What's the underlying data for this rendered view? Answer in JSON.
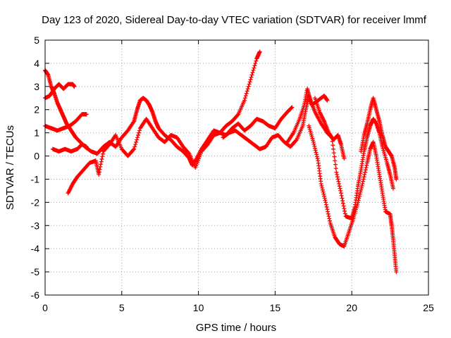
{
  "chart_data": {
    "type": "scatter",
    "title": "Day 123 of 2020, Sidereal Day-to-day VTEC variation (SDTVAR) for receiver lmmf",
    "xlabel": "GPS time / hours",
    "ylabel": "SDTVAR / TECUs",
    "xlim": [
      0,
      25
    ],
    "ylim": [
      -6,
      5
    ],
    "x_ticks": [
      "0",
      "5",
      "10",
      "15",
      "20",
      "25"
    ],
    "y_ticks": [
      "-6",
      "-5",
      "-4",
      "-3",
      "-2",
      "-1",
      "0",
      "1",
      "2",
      "3",
      "4",
      "5"
    ],
    "grid": true,
    "marker": "+",
    "color": "#ff0000",
    "series": [
      {
        "values": [
          [
            0.0,
            3.7
          ],
          [
            0.2,
            3.5
          ],
          [
            0.4,
            3.0
          ],
          [
            0.6,
            2.7
          ],
          [
            0.8,
            2.3
          ],
          [
            1.0,
            2.0
          ],
          [
            1.2,
            1.7
          ],
          [
            1.4,
            1.4
          ],
          [
            1.6,
            1.2
          ],
          [
            1.8,
            1.0
          ],
          [
            2.0,
            0.8
          ],
          [
            2.3,
            0.6
          ],
          [
            2.6,
            0.4
          ],
          [
            3.0,
            0.2
          ],
          [
            3.4,
            0.1
          ],
          [
            3.8,
            0.4
          ],
          [
            4.2,
            0.6
          ],
          [
            4.6,
            0.4
          ],
          [
            5.0,
            0.8
          ],
          [
            5.4,
            1.1
          ],
          [
            5.8,
            1.5
          ],
          [
            6.0,
            2.0
          ],
          [
            6.2,
            2.4
          ],
          [
            6.4,
            2.5
          ],
          [
            6.6,
            2.4
          ],
          [
            6.8,
            2.2
          ],
          [
            7.0,
            1.9
          ],
          [
            7.2,
            1.5
          ],
          [
            7.4,
            1.2
          ],
          [
            7.8,
            0.9
          ],
          [
            8.2,
            0.7
          ],
          [
            8.6,
            0.4
          ],
          [
            9.0,
            0.2
          ],
          [
            9.4,
            -0.1
          ],
          [
            9.6,
            -0.4
          ],
          [
            9.8,
            -0.2
          ],
          [
            10.2,
            0.3
          ],
          [
            10.6,
            0.7
          ],
          [
            11.0,
            1.1
          ],
          [
            11.4,
            1.0
          ],
          [
            11.8,
            1.3
          ],
          [
            12.2,
            1.5
          ],
          [
            12.6,
            1.8
          ],
          [
            13.0,
            2.4
          ],
          [
            13.4,
            3.3
          ],
          [
            13.8,
            4.2
          ],
          [
            14.0,
            4.5
          ]
        ]
      },
      {
        "values": [
          [
            0.0,
            2.5
          ],
          [
            0.3,
            2.6
          ],
          [
            0.6,
            2.9
          ],
          [
            0.9,
            3.1
          ],
          [
            1.2,
            2.9
          ],
          [
            1.5,
            3.1
          ],
          [
            1.8,
            3.1
          ],
          [
            1.9,
            3.0
          ]
        ]
      },
      {
        "values": [
          [
            0.0,
            1.3
          ],
          [
            0.4,
            1.2
          ],
          [
            0.8,
            1.1
          ],
          [
            1.2,
            1.2
          ],
          [
            1.6,
            1.3
          ],
          [
            2.0,
            1.5
          ],
          [
            2.4,
            1.8
          ],
          [
            2.7,
            1.8
          ]
        ]
      },
      {
        "values": [
          [
            0.5,
            0.3
          ],
          [
            0.9,
            0.2
          ],
          [
            1.3,
            0.3
          ],
          [
            1.7,
            0.2
          ],
          [
            2.1,
            0.3
          ],
          [
            2.4,
            0.5
          ],
          [
            2.7,
            0.4
          ]
        ]
      },
      {
        "values": [
          [
            1.5,
            -1.6
          ],
          [
            1.8,
            -1.2
          ],
          [
            2.1,
            -0.9
          ],
          [
            2.5,
            -0.6
          ],
          [
            2.9,
            -0.3
          ],
          [
            3.3,
            -0.2
          ],
          [
            3.5,
            -0.8
          ],
          [
            3.8,
            0.2
          ],
          [
            4.2,
            0.5
          ],
          [
            4.6,
            0.9
          ],
          [
            5.0,
            0.3
          ],
          [
            5.4,
            0.0
          ],
          [
            5.8,
            0.3
          ],
          [
            6.2,
            1.2
          ],
          [
            6.6,
            1.6
          ],
          [
            7.0,
            1.2
          ],
          [
            7.4,
            0.8
          ],
          [
            7.8,
            0.6
          ],
          [
            8.2,
            0.9
          ],
          [
            8.6,
            0.8
          ],
          [
            9.0,
            0.4
          ],
          [
            9.4,
            0.1
          ],
          [
            9.8,
            -0.5
          ],
          [
            10.2,
            0.2
          ],
          [
            10.6,
            0.5
          ],
          [
            11.0,
            0.9
          ],
          [
            11.4,
            1.0
          ],
          [
            11.8,
            0.9
          ],
          [
            12.2,
            1.2
          ],
          [
            12.6,
            1.4
          ],
          [
            13.0,
            1.1
          ],
          [
            13.4,
            1.3
          ],
          [
            13.8,
            1.6
          ],
          [
            14.2,
            1.5
          ],
          [
            14.6,
            1.3
          ],
          [
            15.0,
            1.2
          ],
          [
            15.4,
            1.6
          ],
          [
            15.8,
            1.9
          ],
          [
            16.1,
            2.1
          ]
        ]
      },
      {
        "values": [
          [
            11.6,
            0.8
          ],
          [
            12.0,
            1.0
          ],
          [
            12.4,
            1.1
          ],
          [
            12.8,
            0.9
          ],
          [
            13.2,
            0.7
          ],
          [
            13.6,
            0.5
          ],
          [
            14.0,
            0.3
          ],
          [
            14.4,
            0.4
          ],
          [
            14.8,
            0.8
          ],
          [
            15.2,
            0.9
          ],
          [
            15.6,
            0.6
          ],
          [
            16.0,
            0.4
          ],
          [
            16.4,
            0.7
          ],
          [
            16.8,
            1.3
          ],
          [
            17.0,
            2.0
          ],
          [
            17.2,
            2.6
          ],
          [
            17.4,
            2.2
          ],
          [
            17.8,
            2.4
          ],
          [
            18.2,
            2.6
          ],
          [
            18.4,
            2.4
          ]
        ]
      },
      {
        "values": [
          [
            15.8,
            0.6
          ],
          [
            16.2,
            1.0
          ],
          [
            16.6,
            1.6
          ],
          [
            16.9,
            2.2
          ],
          [
            17.1,
            2.9
          ],
          [
            17.3,
            2.4
          ],
          [
            17.6,
            1.9
          ],
          [
            18.0,
            1.4
          ],
          [
            18.4,
            1.0
          ],
          [
            18.7,
            0.8
          ],
          [
            19.0,
            -0.7
          ],
          [
            19.3,
            -1.6
          ],
          [
            19.6,
            -2.6
          ],
          [
            20.0,
            -2.7
          ],
          [
            20.2,
            -2.2
          ],
          [
            20.4,
            -1.3
          ],
          [
            20.6,
            -0.6
          ],
          [
            20.8,
            0.2
          ],
          [
            21.0,
            0.8
          ],
          [
            21.2,
            1.3
          ],
          [
            21.4,
            1.6
          ],
          [
            21.6,
            1.4
          ],
          [
            21.8,
            1.0
          ],
          [
            22.0,
            0.4
          ],
          [
            22.3,
            -0.3
          ],
          [
            22.5,
            -0.8
          ],
          [
            22.7,
            -1.4
          ]
        ]
      },
      {
        "values": [
          [
            17.6,
            2.5
          ],
          [
            17.9,
            1.9
          ],
          [
            18.2,
            1.5
          ],
          [
            18.5,
            1.0
          ],
          [
            18.8,
            0.7
          ],
          [
            19.1,
            0.9
          ],
          [
            19.3,
            0.5
          ],
          [
            19.5,
            -0.1
          ]
        ]
      },
      {
        "values": [
          [
            17.2,
            1.3
          ],
          [
            17.5,
            0.6
          ],
          [
            17.8,
            -0.2
          ],
          [
            18.0,
            -1.2
          ],
          [
            18.3,
            -2.0
          ],
          [
            18.6,
            -2.9
          ],
          [
            18.9,
            -3.5
          ],
          [
            19.2,
            -3.8
          ],
          [
            19.5,
            -3.9
          ],
          [
            19.8,
            -3.3
          ],
          [
            20.1,
            -2.7
          ],
          [
            20.4,
            -2.0
          ],
          [
            20.7,
            -1.2
          ],
          [
            21.0,
            -0.3
          ],
          [
            21.2,
            0.3
          ],
          [
            21.4,
            0.6
          ],
          [
            21.6,
            0.0
          ],
          [
            21.8,
            -0.8
          ],
          [
            22.0,
            -1.6
          ],
          [
            22.2,
            -2.4
          ],
          [
            22.5,
            -2.5
          ],
          [
            22.6,
            -3.0
          ],
          [
            22.7,
            -3.6
          ],
          [
            22.8,
            -4.3
          ],
          [
            22.9,
            -5.0
          ]
        ]
      },
      {
        "values": [
          [
            20.6,
            0.2
          ],
          [
            20.8,
            0.9
          ],
          [
            21.0,
            1.4
          ],
          [
            21.2,
            2.0
          ],
          [
            21.4,
            2.5
          ],
          [
            21.6,
            2.0
          ],
          [
            21.8,
            1.5
          ],
          [
            22.0,
            0.9
          ],
          [
            22.2,
            0.4
          ],
          [
            22.4,
            0.2
          ],
          [
            22.6,
            0.0
          ],
          [
            22.8,
            -0.5
          ],
          [
            22.9,
            -1.0
          ]
        ]
      }
    ]
  }
}
